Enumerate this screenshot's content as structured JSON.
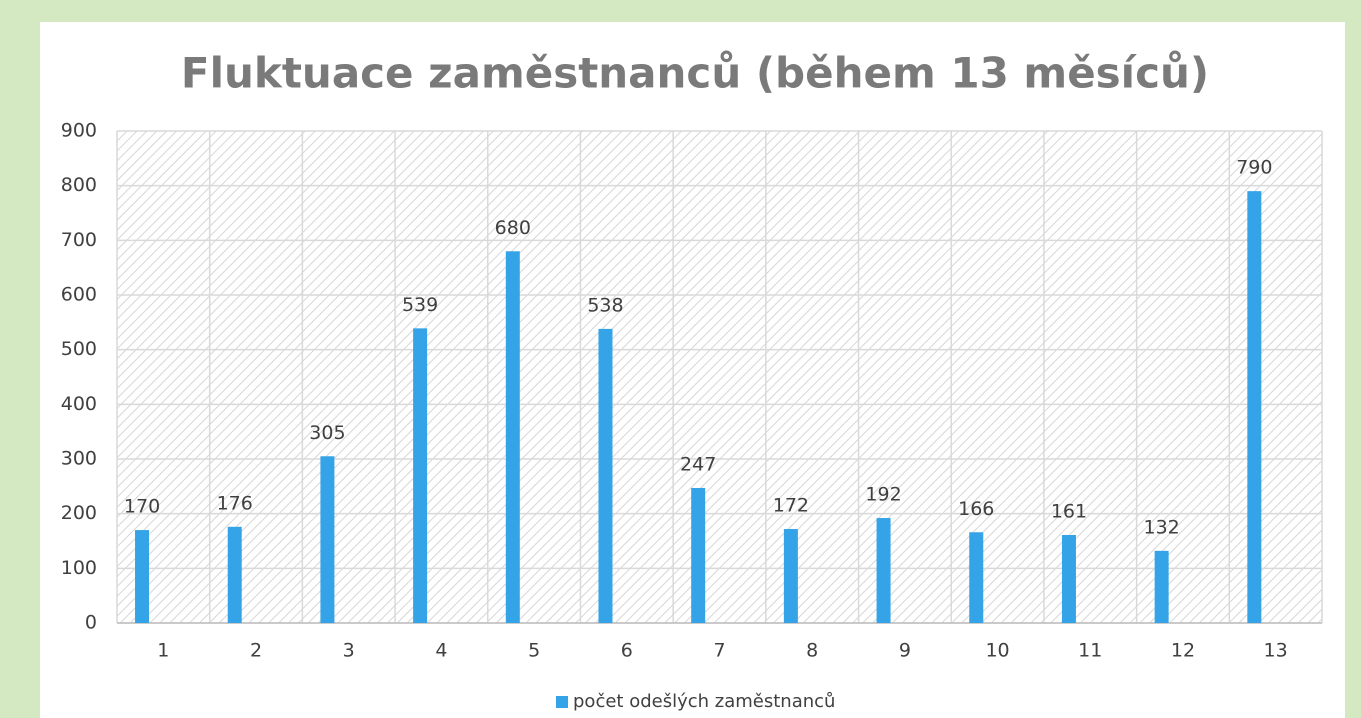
{
  "chart_data": {
    "type": "bar",
    "title": "Fluktuace zaměstnanců (během 13 měsíců)",
    "categories": [
      "1",
      "2",
      "3",
      "4",
      "5",
      "6",
      "7",
      "8",
      "9",
      "10",
      "11",
      "12",
      "13"
    ],
    "series": [
      {
        "name": "počet odešlých zaměstnanců",
        "color": "#35a3e8",
        "values": [
          170,
          176,
          305,
          539,
          680,
          538,
          247,
          172,
          192,
          166,
          161,
          132,
          790
        ]
      }
    ],
    "ylim": [
      0,
      900
    ],
    "yticks": [
      0,
      100,
      200,
      300,
      400,
      500,
      600,
      700,
      800,
      900
    ],
    "grid": true,
    "legend": "bottom",
    "data_labels": true
  }
}
